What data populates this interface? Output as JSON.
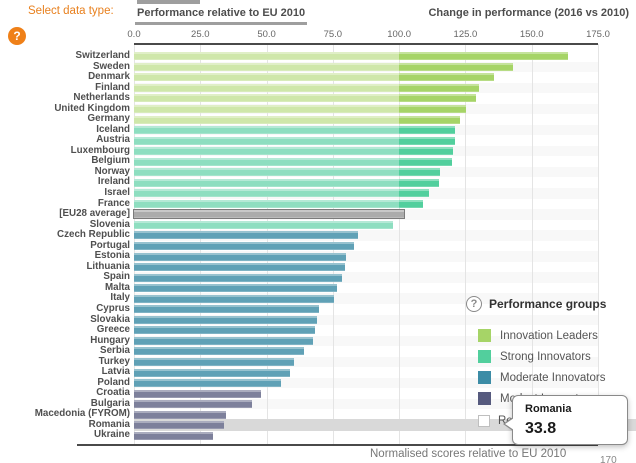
{
  "header": {
    "select_label": "Select data type:",
    "help_icon": "question-mark",
    "tabs": [
      {
        "label": "Performance relative to EU 2010",
        "active": true
      },
      {
        "label": "Change in performance (2016 vs 2010)",
        "active": false
      }
    ]
  },
  "chart_data": {
    "type": "bar",
    "orientation": "horizontal",
    "xlabel": "Normalised scores relative to EU 2010",
    "axis_ticks": [
      "0.0",
      "25.0",
      "50.0",
      "75.0",
      "100.0",
      "125.0",
      "150.0",
      "175.0"
    ],
    "xlim": [
      0,
      175
    ],
    "grid": true,
    "reference_value": 100,
    "group_colors": {
      "leaders": {
        "pale": "#cfe7aa",
        "full": "#a6d467"
      },
      "strong": {
        "pale": "#8edec0",
        "full": "#52cf9d"
      },
      "moderate": {
        "pale": "#60a1b6",
        "full": "#3c8ca6"
      },
      "modest": {
        "pale": "#7d809b",
        "full": "#565a7e"
      },
      "eu": {
        "pale": "#ababab",
        "full": "#ababab",
        "border": "#7b7b7b"
      }
    },
    "bars": [
      {
        "country": "Switzerland",
        "value": 163.5,
        "group": "leaders"
      },
      {
        "country": "Sweden",
        "value": 143.0,
        "group": "leaders"
      },
      {
        "country": "Denmark",
        "value": 135.8,
        "group": "leaders"
      },
      {
        "country": "Finland",
        "value": 130.3,
        "group": "leaders"
      },
      {
        "country": "Netherlands",
        "value": 128.9,
        "group": "leaders"
      },
      {
        "country": "United Kingdom",
        "value": 125.1,
        "group": "leaders"
      },
      {
        "country": "Germany",
        "value": 123.0,
        "group": "leaders"
      },
      {
        "country": "Iceland",
        "value": 121.2,
        "group": "strong"
      },
      {
        "country": "Austria",
        "value": 120.9,
        "group": "strong"
      },
      {
        "country": "Luxembourg",
        "value": 120.5,
        "group": "strong"
      },
      {
        "country": "Belgium",
        "value": 120.1,
        "group": "strong"
      },
      {
        "country": "Norway",
        "value": 115.5,
        "group": "strong"
      },
      {
        "country": "Ireland",
        "value": 115.2,
        "group": "strong"
      },
      {
        "country": "Israel",
        "value": 111.3,
        "group": "strong"
      },
      {
        "country": "France",
        "value": 108.9,
        "group": "strong"
      },
      {
        "country": "[EU28 average]",
        "value": 102.0,
        "group": "eu"
      },
      {
        "country": "Slovenia",
        "value": 97.8,
        "group": "strong"
      },
      {
        "country": "Czech Republic",
        "value": 84.6,
        "group": "moderate"
      },
      {
        "country": "Portugal",
        "value": 82.8,
        "group": "moderate"
      },
      {
        "country": "Estonia",
        "value": 80.0,
        "group": "moderate"
      },
      {
        "country": "Lithuania",
        "value": 79.4,
        "group": "moderate"
      },
      {
        "country": "Spain",
        "value": 78.6,
        "group": "moderate"
      },
      {
        "country": "Malta",
        "value": 76.7,
        "group": "moderate"
      },
      {
        "country": "Italy",
        "value": 75.4,
        "group": "moderate"
      },
      {
        "country": "Cyprus",
        "value": 69.9,
        "group": "moderate"
      },
      {
        "country": "Slovakia",
        "value": 69.0,
        "group": "moderate"
      },
      {
        "country": "Greece",
        "value": 68.3,
        "group": "moderate"
      },
      {
        "country": "Hungary",
        "value": 67.6,
        "group": "moderate"
      },
      {
        "country": "Serbia",
        "value": 64.3,
        "group": "moderate"
      },
      {
        "country": "Turkey",
        "value": 60.4,
        "group": "moderate"
      },
      {
        "country": "Latvia",
        "value": 58.8,
        "group": "moderate"
      },
      {
        "country": "Poland",
        "value": 55.6,
        "group": "moderate"
      },
      {
        "country": "Croatia",
        "value": 47.8,
        "group": "modest"
      },
      {
        "country": "Bulgaria",
        "value": 44.6,
        "group": "modest"
      },
      {
        "country": "Macedonia (FYROM)",
        "value": 34.8,
        "group": "modest"
      },
      {
        "country": "Romania",
        "value": 33.8,
        "group": "modest"
      },
      {
        "country": "Ukraine",
        "value": 29.8,
        "group": "modest"
      }
    ]
  },
  "legend": {
    "title": "Performance groups",
    "items": [
      {
        "label": "Innovation Leaders",
        "color": "#a6d467"
      },
      {
        "label": "Strong Innovators",
        "color": "#52cf9d"
      },
      {
        "label": "Moderate Innovators",
        "color": "#3c8ca6"
      },
      {
        "label": "Modest Innovators",
        "color": "#565a7e"
      }
    ],
    "checkbox_item": {
      "visible_label": "Re",
      "checked": false
    }
  },
  "highlight": {
    "country": "Romania",
    "band_color": "#d9d9d9"
  },
  "tooltip": {
    "title": "Romania",
    "value": "33.8"
  },
  "footer": {
    "caption": "Normalised scores relative to EU 2010",
    "corner_text": "170"
  }
}
